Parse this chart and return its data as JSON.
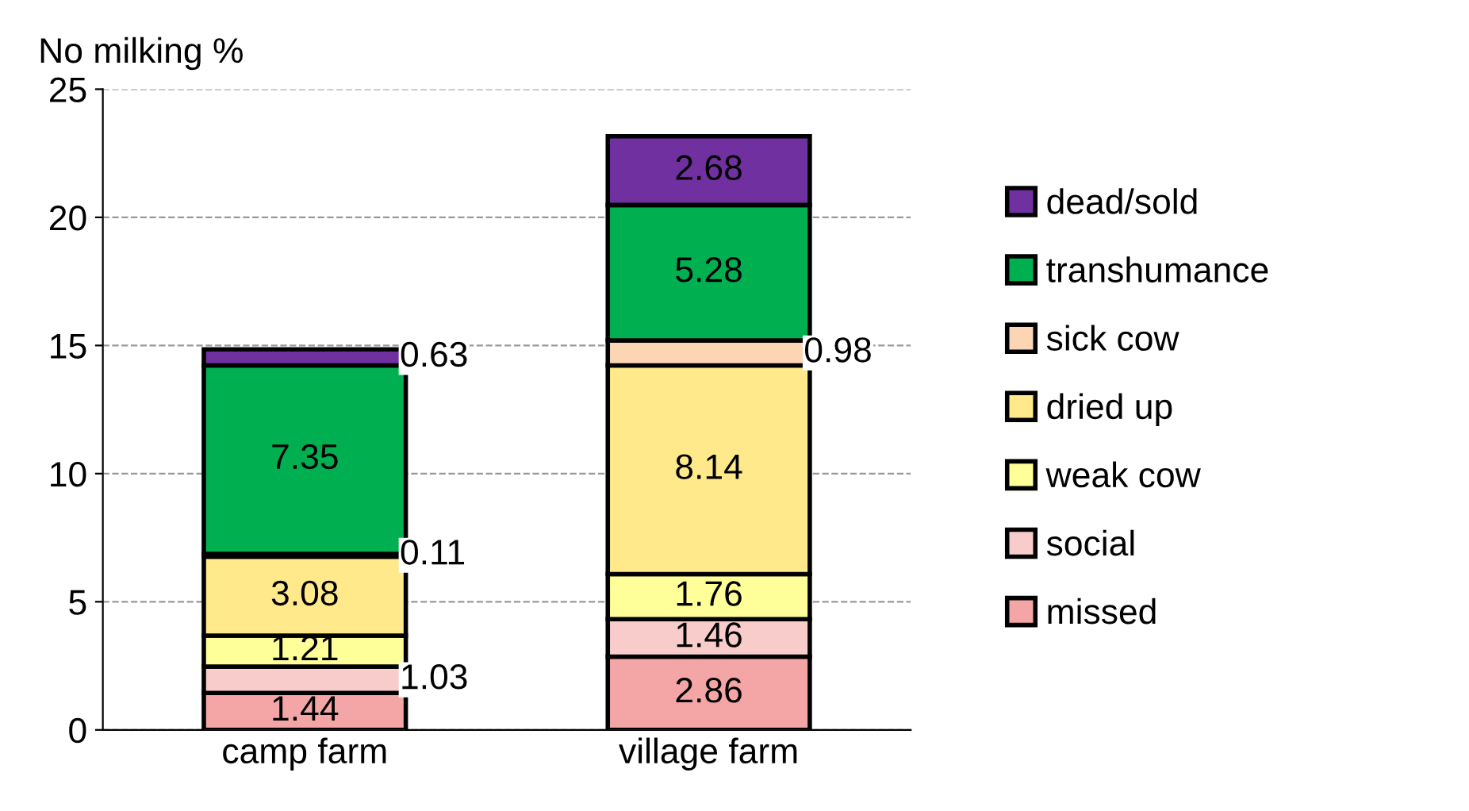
{
  "chart_data": {
    "type": "bar",
    "stacked": true,
    "ylabel": "No milking %",
    "categories": [
      "camp farm",
      "village farm"
    ],
    "series": [
      {
        "name": "missed",
        "color": "#f4a6a6",
        "values": [
          1.44,
          2.86
        ]
      },
      {
        "name": "social",
        "color": "#f9cccc",
        "values": [
          1.03,
          1.46
        ]
      },
      {
        "name": "weak cow",
        "color": "#ffff99",
        "values": [
          1.21,
          1.76
        ]
      },
      {
        "name": "dried up",
        "color": "#ffe98a",
        "values": [
          3.08,
          8.14
        ]
      },
      {
        "name": "sick cow",
        "color": "#fcd5b5",
        "values": [
          0.11,
          0.98
        ]
      },
      {
        "name": "transhumance",
        "color": "#00b050",
        "values": [
          7.35,
          5.28
        ]
      },
      {
        "name": "dead/sold",
        "color": "#7030a0",
        "values": [
          0.63,
          2.68
        ]
      }
    ],
    "ylim": [
      0,
      25
    ],
    "yticks": [
      0,
      5,
      10,
      15,
      20,
      25
    ],
    "grid": "y",
    "legend": "right",
    "data_labels": true
  }
}
